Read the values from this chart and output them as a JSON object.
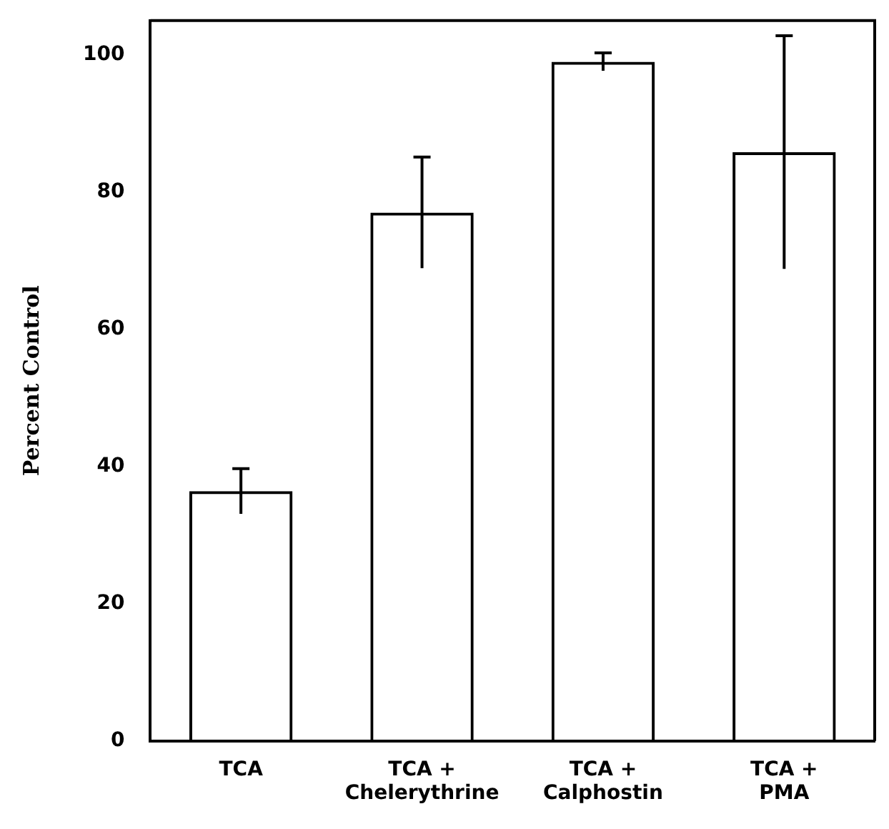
{
  "chart_data": {
    "type": "bar",
    "ylabel": "Percent Control",
    "categories": [
      "TCA",
      "TCA +\nChelerythrine",
      "TCA +\nCalphostin",
      "TCA +\nPMA"
    ],
    "values": [
      36.4,
      77,
      99,
      85.8
    ],
    "errors": [
      3.3,
      8.1,
      1.3,
      17
    ],
    "color": "#000000",
    "ylim": [
      0,
      105
    ],
    "yticks": [
      0,
      20,
      40,
      60,
      80,
      100
    ],
    "grid": false,
    "legend": false
  }
}
